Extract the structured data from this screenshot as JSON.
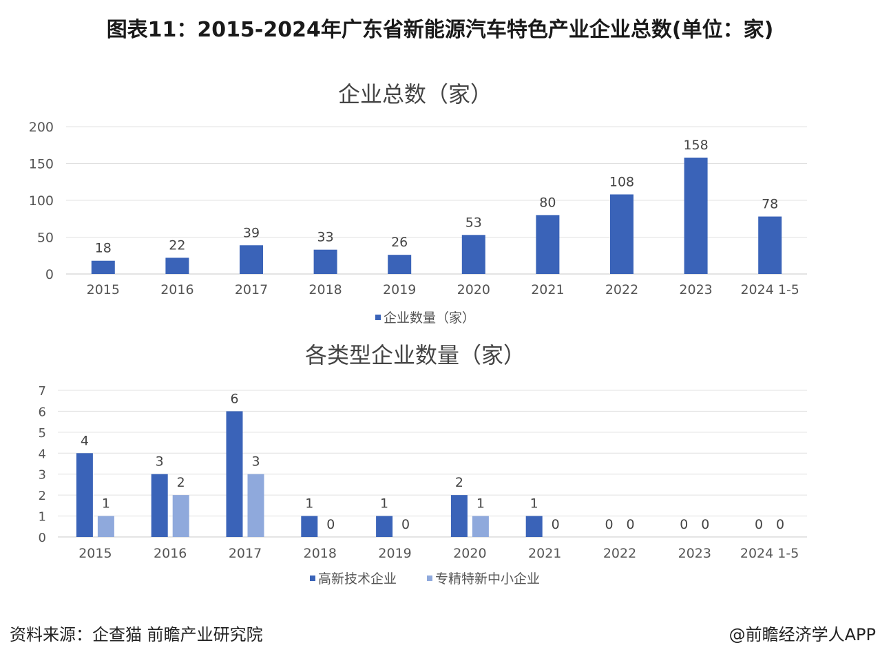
{
  "title": "图表11：2015-2024年广东省新能源汽车特色产业企业总数(单位：家)",
  "chart_data": [
    {
      "type": "bar",
      "title": "企业总数（家）",
      "categories": [
        "2015",
        "2016",
        "2017",
        "2018",
        "2019",
        "2020",
        "2021",
        "2022",
        "2023",
        "2024 1-5"
      ],
      "series": [
        {
          "name": "企业数量（家）",
          "values": [
            18,
            22,
            39,
            33,
            26,
            53,
            80,
            108,
            158,
            78
          ],
          "color": "#3a63b8"
        }
      ],
      "ylim": [
        0,
        200
      ],
      "yticks": [
        0,
        50,
        100,
        150,
        200
      ],
      "grid": true,
      "legend": "bottom"
    },
    {
      "type": "bar",
      "title": "各类型企业数量（家）",
      "categories": [
        "2015",
        "2016",
        "2017",
        "2018",
        "2019",
        "2020",
        "2021",
        "2022",
        "2023",
        "2024 1-5"
      ],
      "series": [
        {
          "name": "高新技术企业",
          "values": [
            4,
            3,
            6,
            1,
            1,
            2,
            1,
            0,
            0,
            0
          ],
          "color": "#3a63b8"
        },
        {
          "name": "专精特新中小企业",
          "values": [
            1,
            2,
            3,
            0,
            0,
            1,
            0,
            0,
            0,
            0
          ],
          "color": "#8fa9dc"
        }
      ],
      "ylim": [
        0,
        7
      ],
      "yticks": [
        0,
        1,
        2,
        3,
        4,
        5,
        6,
        7
      ],
      "grid": true,
      "legend": "bottom"
    }
  ],
  "footer": {
    "source": "资料来源：企查猫 前瞻产业研究院",
    "credit": "@前瞻经济学人APP"
  }
}
